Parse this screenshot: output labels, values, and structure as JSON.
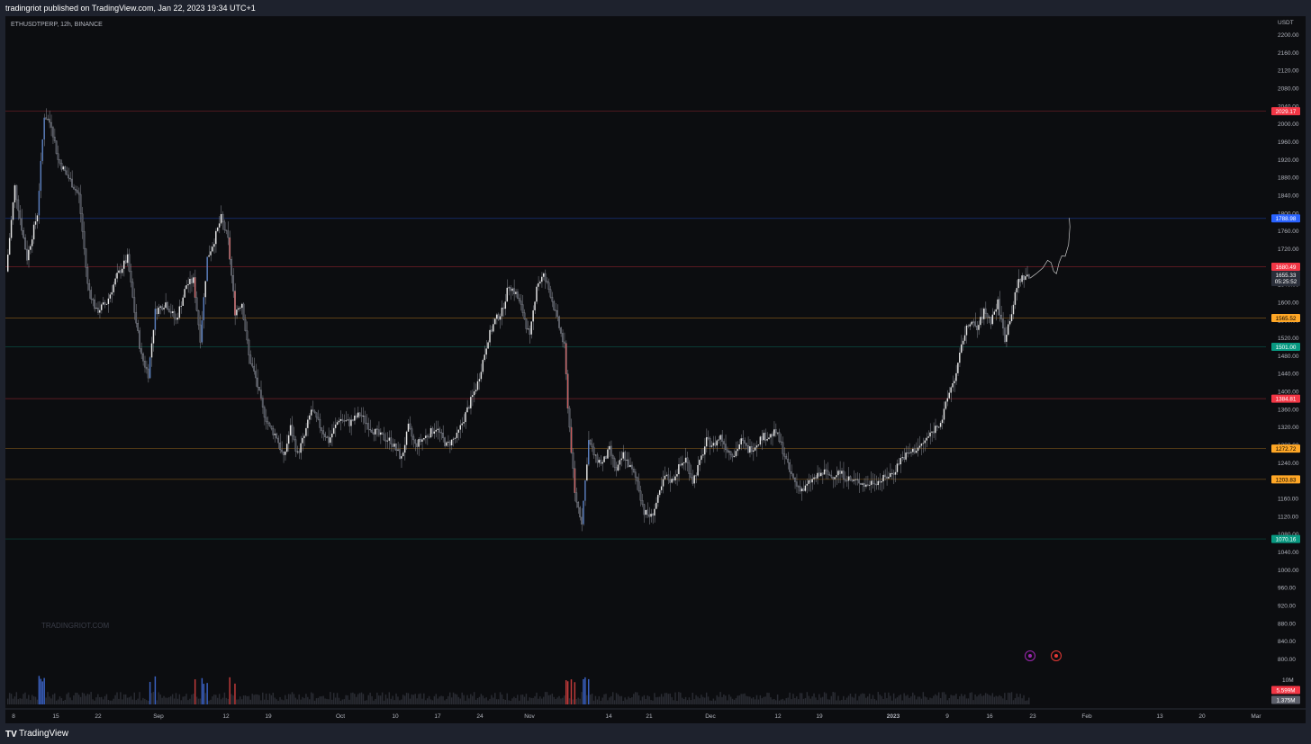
{
  "header": {
    "published": "tradingriot published on TradingView.com, Jan 22, 2023 19:34 UTC+1"
  },
  "footer": {
    "brand": "TradingView",
    "logo_icon": "tradingview-logo-icon"
  },
  "watermark": "TRADINGRIOT.COM",
  "events": [
    {
      "icon": "lightning-icon",
      "color": "#9c27b0"
    },
    {
      "icon": "us-flag-icon",
      "color": "#e53935"
    }
  ],
  "chart_data": {
    "type": "candlestick",
    "symbol_label": "ETHUSDTPERP, 12h, BINANCE",
    "currency": "USDT",
    "ylim": [
      780,
      2220
    ],
    "y_ticks": [
      2200,
      2160,
      2120,
      2080,
      2040,
      2000,
      1960,
      1920,
      1880,
      1840,
      1800,
      1760,
      1720,
      1680,
      1640,
      1600,
      1560,
      1520,
      1480,
      1440,
      1400,
      1360,
      1320,
      1280,
      1240,
      1200,
      1160,
      1120,
      1080,
      1040,
      1000,
      960,
      920,
      880,
      840,
      800
    ],
    "volume_scale_label": "10M",
    "x_ticks": [
      "8",
      "15",
      "22",
      "Sep",
      "12",
      "19",
      "Oct",
      "10",
      "17",
      "24",
      "Nov",
      "14",
      "21",
      "Dec",
      "12",
      "19",
      "2023",
      "9",
      "16",
      "23",
      "Feb",
      "13",
      "20",
      "Mar"
    ],
    "levels": [
      {
        "price": 2029.17,
        "label": "2029.17",
        "color": "#f23645"
      },
      {
        "price": 1788.98,
        "label": "1788.98",
        "color": "#2962ff"
      },
      {
        "price": 1680.49,
        "label": "1680.49",
        "color": "#f23645"
      },
      {
        "price": 1565.52,
        "label": "1565.52",
        "color": "#ffa726"
      },
      {
        "price": 1501.0,
        "label": "1501.00",
        "color": "#089981"
      },
      {
        "price": 1384.81,
        "label": "1384.81",
        "color": "#f23645"
      },
      {
        "price": 1272.72,
        "label": "1272.72",
        "color": "#ffa726"
      },
      {
        "price": 1203.83,
        "label": "1203.83",
        "color": "#ffa726"
      },
      {
        "price": 1070.16,
        "label": "1070.16",
        "color": "#089981"
      }
    ],
    "last_price": {
      "price": 1655.33,
      "label": "1655.33",
      "countdown": "05:25:52"
    },
    "volume_labels": [
      {
        "label": "5.599M",
        "color": "#f23645"
      },
      {
        "label": "1.375M",
        "color": "#5d606b"
      }
    ],
    "path": [
      [
        0,
        1670
      ],
      [
        5,
        1860
      ],
      [
        8,
        1790
      ],
      [
        12,
        1700
      ],
      [
        18,
        1800
      ],
      [
        22,
        2020
      ],
      [
        26,
        2000
      ],
      [
        30,
        1920
      ],
      [
        36,
        1880
      ],
      [
        42,
        1840
      ],
      [
        47,
        1640
      ],
      [
        52,
        1580
      ],
      [
        58,
        1600
      ],
      [
        64,
        1660
      ],
      [
        70,
        1700
      ],
      [
        74,
        1580
      ],
      [
        78,
        1480
      ],
      [
        82,
        1440
      ],
      [
        86,
        1580
      ],
      [
        92,
        1600
      ],
      [
        98,
        1560
      ],
      [
        104,
        1640
      ],
      [
        108,
        1650
      ],
      [
        112,
        1520
      ],
      [
        116,
        1700
      ],
      [
        120,
        1740
      ],
      [
        124,
        1790
      ],
      [
        128,
        1740
      ],
      [
        132,
        1580
      ],
      [
        136,
        1600
      ],
      [
        140,
        1480
      ],
      [
        144,
        1430
      ],
      [
        148,
        1360
      ],
      [
        152,
        1320
      ],
      [
        156,
        1300
      ],
      [
        160,
        1250
      ],
      [
        164,
        1320
      ],
      [
        168,
        1260
      ],
      [
        172,
        1300
      ],
      [
        176,
        1360
      ],
      [
        180,
        1330
      ],
      [
        186,
        1290
      ],
      [
        192,
        1340
      ],
      [
        198,
        1330
      ],
      [
        204,
        1350
      ],
      [
        210,
        1320
      ],
      [
        216,
        1300
      ],
      [
        222,
        1290
      ],
      [
        228,
        1250
      ],
      [
        232,
        1320
      ],
      [
        236,
        1280
      ],
      [
        242,
        1300
      ],
      [
        248,
        1320
      ],
      [
        254,
        1280
      ],
      [
        260,
        1300
      ],
      [
        266,
        1360
      ],
      [
        272,
        1420
      ],
      [
        278,
        1520
      ],
      [
        282,
        1560
      ],
      [
        286,
        1580
      ],
      [
        290,
        1640
      ],
      [
        294,
        1620
      ],
      [
        298,
        1580
      ],
      [
        302,
        1520
      ],
      [
        306,
        1640
      ],
      [
        310,
        1660
      ],
      [
        314,
        1620
      ],
      [
        318,
        1560
      ],
      [
        322,
        1500
      ],
      [
        324,
        1370
      ],
      [
        328,
        1170
      ],
      [
        332,
        1110
      ],
      [
        336,
        1290
      ],
      [
        340,
        1250
      ],
      [
        344,
        1240
      ],
      [
        348,
        1270
      ],
      [
        352,
        1220
      ],
      [
        356,
        1260
      ],
      [
        360,
        1230
      ],
      [
        364,
        1200
      ],
      [
        368,
        1130
      ],
      [
        372,
        1120
      ],
      [
        376,
        1160
      ],
      [
        380,
        1210
      ],
      [
        384,
        1200
      ],
      [
        388,
        1230
      ],
      [
        392,
        1250
      ],
      [
        396,
        1200
      ],
      [
        400,
        1240
      ],
      [
        404,
        1290
      ],
      [
        408,
        1280
      ],
      [
        412,
        1300
      ],
      [
        416,
        1270
      ],
      [
        420,
        1260
      ],
      [
        424,
        1290
      ],
      [
        428,
        1270
      ],
      [
        432,
        1280
      ],
      [
        436,
        1300
      ],
      [
        440,
        1300
      ],
      [
        444,
        1310
      ],
      [
        448,
        1270
      ],
      [
        452,
        1220
      ],
      [
        456,
        1190
      ],
      [
        460,
        1180
      ],
      [
        464,
        1200
      ],
      [
        468,
        1210
      ],
      [
        472,
        1220
      ],
      [
        476,
        1210
      ],
      [
        480,
        1220
      ],
      [
        484,
        1210
      ],
      [
        488,
        1200
      ],
      [
        492,
        1200
      ],
      [
        496,
        1190
      ],
      [
        500,
        1200
      ],
      [
        504,
        1200
      ],
      [
        508,
        1210
      ],
      [
        512,
        1220
      ],
      [
        516,
        1250
      ],
      [
        520,
        1260
      ],
      [
        524,
        1270
      ],
      [
        528,
        1280
      ],
      [
        532,
        1300
      ],
      [
        536,
        1320
      ],
      [
        540,
        1340
      ],
      [
        544,
        1400
      ],
      [
        548,
        1440
      ],
      [
        552,
        1520
      ],
      [
        556,
        1560
      ],
      [
        560,
        1540
      ],
      [
        564,
        1580
      ],
      [
        568,
        1560
      ],
      [
        572,
        1600
      ],
      [
        576,
        1520
      ],
      [
        580,
        1580
      ],
      [
        584,
        1650
      ],
      [
        588,
        1660
      ],
      [
        590,
        1655
      ]
    ],
    "projection": [
      [
        1641,
        1655
      ],
      [
        1650,
        1665
      ],
      [
        1660,
        1678
      ],
      [
        1667,
        1695
      ],
      [
        1672,
        1690
      ],
      [
        1676,
        1670
      ],
      [
        1680,
        1665
      ],
      [
        1684,
        1690
      ],
      [
        1688,
        1705
      ],
      [
        1693,
        1704
      ],
      [
        1698,
        1730
      ],
      [
        1700,
        1770
      ],
      [
        1699,
        1790
      ]
    ],
    "bars_total": 590
  }
}
